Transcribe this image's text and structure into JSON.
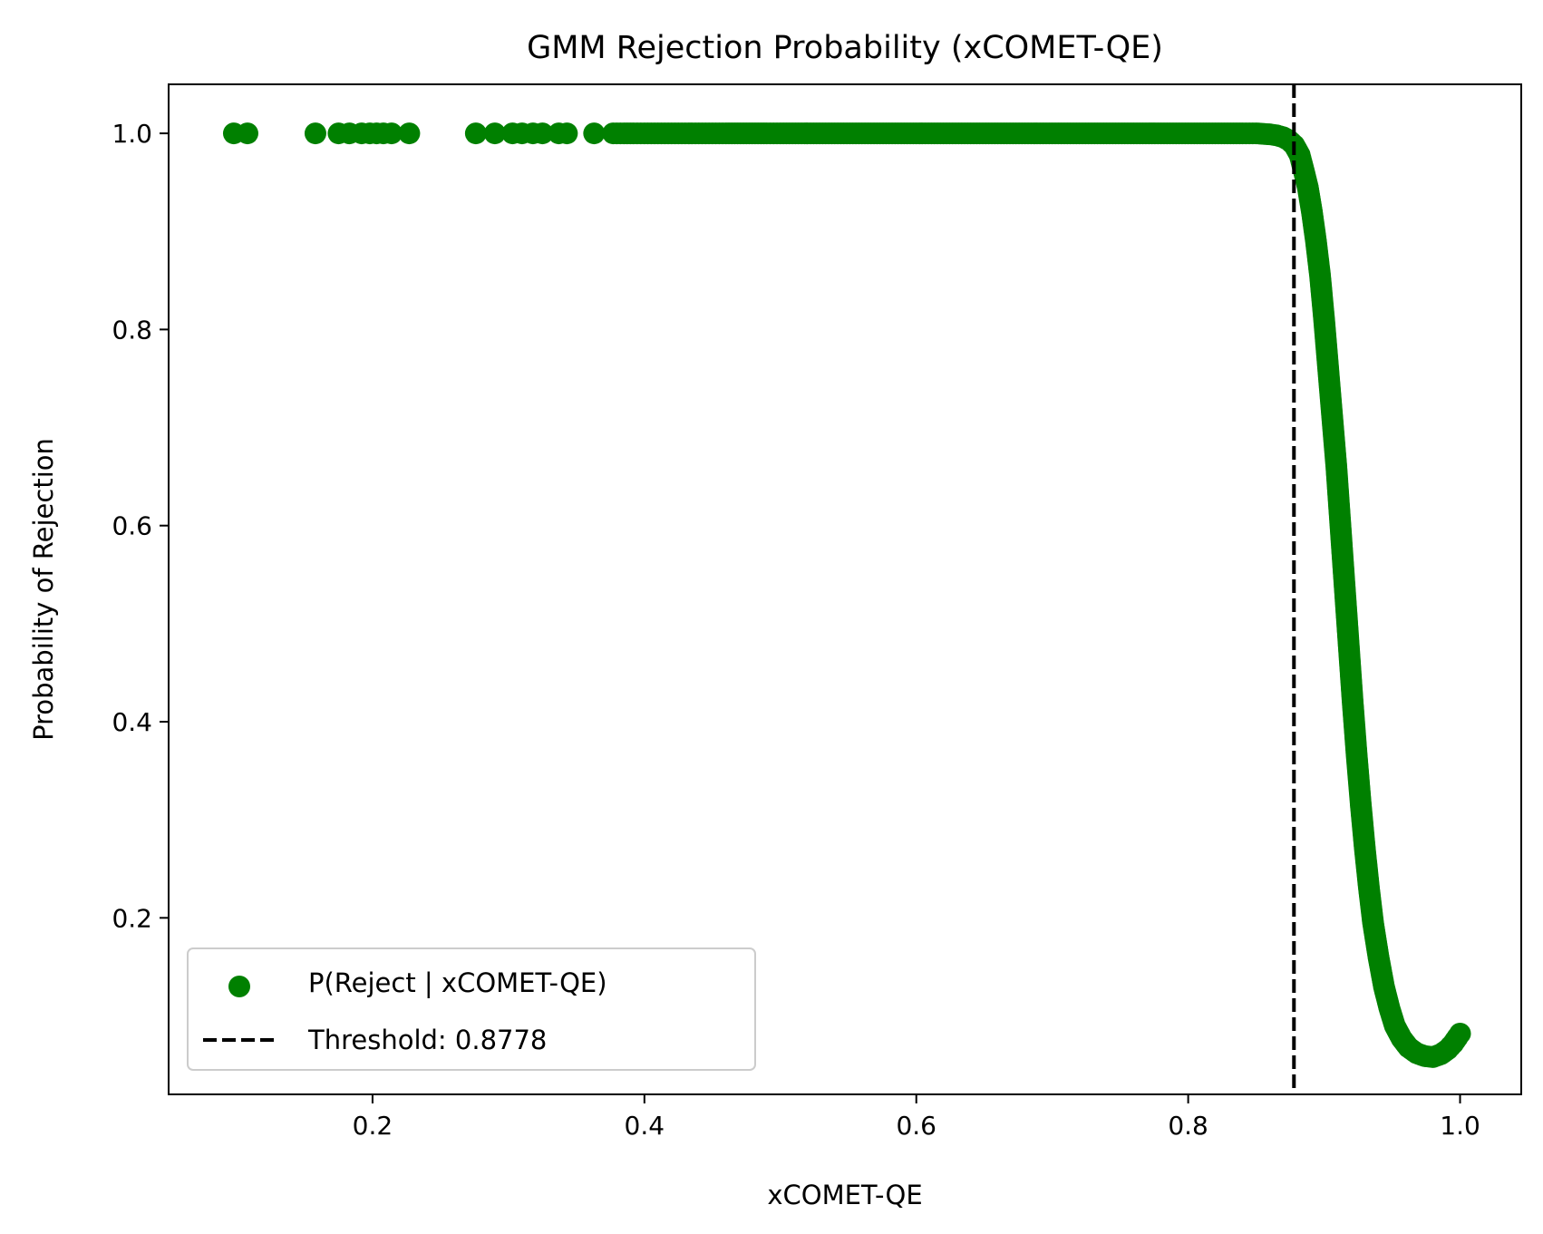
{
  "chart_data": {
    "type": "scatter",
    "title": "GMM Rejection Probability (xCOMET-QE)",
    "xlabel": "xCOMET-QE",
    "ylabel": "Probability of Rejection",
    "xlim": [
      0.05,
      1.045
    ],
    "ylim": [
      0.02,
      1.05
    ],
    "x_ticks": [
      0.2,
      0.4,
      0.6,
      0.8,
      1.0
    ],
    "x_tick_labels": [
      "0.2",
      "0.4",
      "0.6",
      "0.8",
      "1.0"
    ],
    "y_ticks": [
      0.2,
      0.4,
      0.6,
      0.8,
      1.0
    ],
    "y_tick_labels": [
      "0.2",
      "0.4",
      "0.6",
      "0.8",
      "1.0"
    ],
    "grid": false,
    "legend_position": "lower-left",
    "series": [
      {
        "name": "P(Reject | xCOMET-QE)",
        "color": "#008000",
        "marker": "circle",
        "points": [
          [
            0.098,
            1.0
          ],
          [
            0.108,
            1.0
          ],
          [
            0.158,
            1.0
          ],
          [
            0.175,
            1.0
          ],
          [
            0.183,
            1.0
          ],
          [
            0.192,
            1.0
          ],
          [
            0.198,
            1.0
          ],
          [
            0.203,
            1.0
          ],
          [
            0.208,
            1.0
          ],
          [
            0.214,
            1.0
          ],
          [
            0.227,
            1.0
          ],
          [
            0.276,
            1.0
          ],
          [
            0.29,
            1.0
          ],
          [
            0.303,
            1.0
          ],
          [
            0.31,
            1.0
          ],
          [
            0.318,
            1.0
          ],
          [
            0.325,
            1.0
          ],
          [
            0.337,
            1.0
          ],
          [
            0.343,
            1.0
          ],
          [
            0.363,
            1.0
          ],
          [
            0.377,
            1.0
          ],
          [
            0.385,
            1.0
          ],
          [
            0.392,
            1.0
          ],
          [
            0.4,
            1.0
          ],
          [
            0.41,
            1.0
          ],
          [
            0.42,
            1.0
          ],
          [
            0.43,
            1.0
          ],
          [
            0.44,
            1.0
          ],
          [
            0.45,
            1.0
          ],
          [
            0.46,
            1.0
          ],
          [
            0.475,
            1.0
          ],
          [
            0.49,
            1.0
          ],
          [
            0.5,
            1.0
          ],
          [
            0.52,
            1.0
          ],
          [
            0.54,
            1.0
          ],
          [
            0.56,
            1.0
          ],
          [
            0.58,
            1.0
          ],
          [
            0.6,
            1.0
          ],
          [
            0.62,
            1.0
          ],
          [
            0.64,
            1.0
          ],
          [
            0.66,
            1.0
          ],
          [
            0.68,
            1.0
          ],
          [
            0.7,
            1.0
          ],
          [
            0.72,
            1.0
          ],
          [
            0.74,
            1.0
          ],
          [
            0.76,
            1.0
          ],
          [
            0.78,
            1.0
          ],
          [
            0.8,
            1.0
          ],
          [
            0.82,
            1.0
          ],
          [
            0.84,
            1.0
          ],
          [
            0.85,
            1.0
          ],
          [
            0.86,
            0.999
          ],
          [
            0.865,
            0.998
          ],
          [
            0.87,
            0.996
          ],
          [
            0.874,
            0.993
          ],
          [
            0.878,
            0.988
          ],
          [
            0.882,
            0.978
          ],
          [
            0.885,
            0.962
          ],
          [
            0.888,
            0.945
          ],
          [
            0.891,
            0.92
          ],
          [
            0.894,
            0.89
          ],
          [
            0.897,
            0.855
          ],
          [
            0.9,
            0.81
          ],
          [
            0.903,
            0.76
          ],
          [
            0.906,
            0.71
          ],
          [
            0.909,
            0.66
          ],
          [
            0.912,
            0.6
          ],
          [
            0.915,
            0.54
          ],
          [
            0.918,
            0.48
          ],
          [
            0.921,
            0.42
          ],
          [
            0.924,
            0.365
          ],
          [
            0.927,
            0.315
          ],
          [
            0.93,
            0.27
          ],
          [
            0.933,
            0.23
          ],
          [
            0.936,
            0.195
          ],
          [
            0.94,
            0.16
          ],
          [
            0.944,
            0.13
          ],
          [
            0.948,
            0.108
          ],
          [
            0.952,
            0.09
          ],
          [
            0.957,
            0.077
          ],
          [
            0.962,
            0.068
          ],
          [
            0.968,
            0.062
          ],
          [
            0.974,
            0.059
          ],
          [
            0.98,
            0.058
          ],
          [
            0.986,
            0.061
          ],
          [
            0.991,
            0.066
          ],
          [
            0.995,
            0.072
          ],
          [
            0.998,
            0.078
          ],
          [
            1.0,
            0.082
          ]
        ]
      }
    ],
    "threshold": {
      "label": "Threshold: 0.8778",
      "value": 0.8778,
      "color": "#000000",
      "style": "dashed"
    }
  }
}
